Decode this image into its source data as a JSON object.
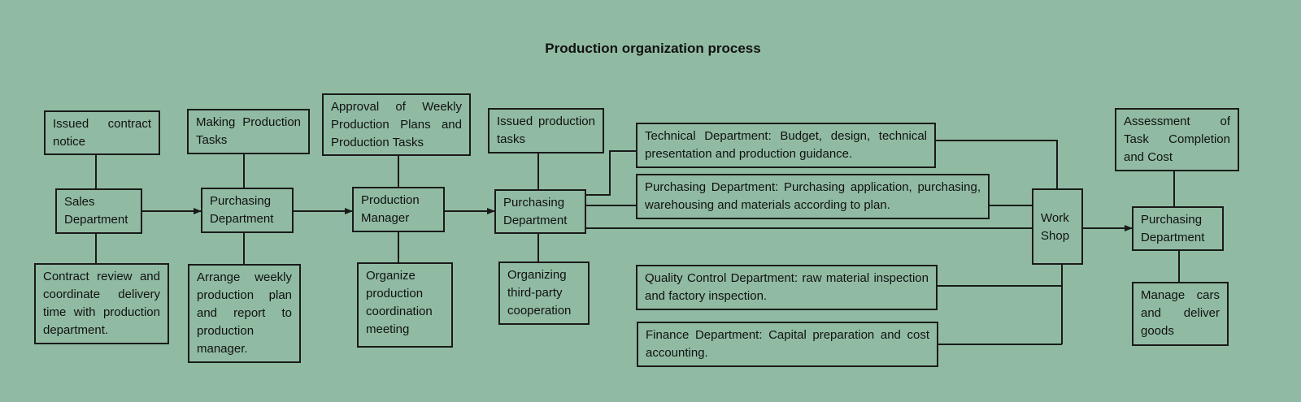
{
  "title": "Production organization process",
  "colors": {
    "background": "#90bba2",
    "stroke": "#1a1a1a"
  },
  "boxes": {
    "issued_contract": "Issued contract notice",
    "sales": "Sales Department",
    "contract_review": "Contract review and coordinate delivery time with production department.",
    "making_tasks": "Making Production Tasks",
    "purchasing1": "Purchasing Department",
    "arrange": "Arrange weekly production plan and report to production manager.",
    "approval": "Approval of Weekly Production Plans and Production Tasks",
    "production_manager": "Production Manager",
    "organize_meeting": "Organize production coordination meeting",
    "issued_production": "Issued production tasks",
    "purchasing2": "Purchasing Department",
    "third_party": "Organizing third-party cooperation",
    "technical": "Technical Department: Budget, design, technical presentation and production guidance.",
    "purchasing_long": "Purchasing Department: Purchasing application, purchasing, warehousing and materials according to plan.",
    "workshop": "Work Shop",
    "quality": "Quality Control Department: raw material inspection and factory inspection.",
    "finance": "Finance Department: Capital preparation and cost accounting.",
    "assessment": "Assessment of Task Completion and Cost",
    "purchasing3": "Purchasing Department",
    "manage_cars": "Manage cars and deliver goods"
  }
}
